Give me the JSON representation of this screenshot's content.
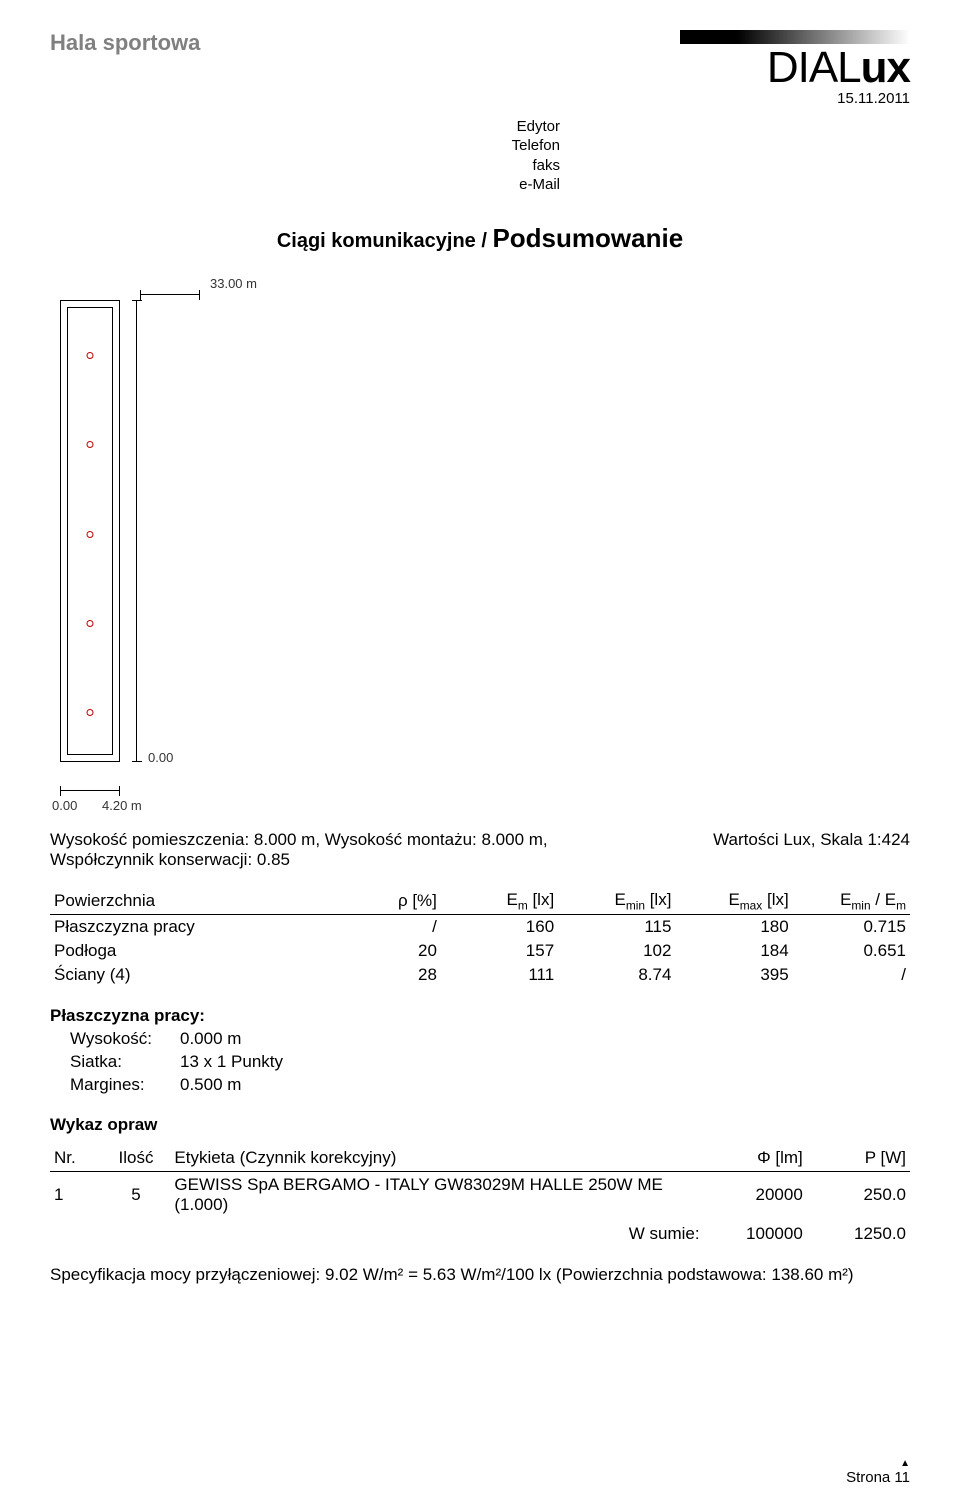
{
  "header": {
    "project_title": "Hala sportowa",
    "logo_light": "DIAL",
    "logo_bold": "ux",
    "date": "15.11.2011",
    "meta_labels": [
      "Edytor",
      "Telefon",
      "faks",
      "e-Mail"
    ]
  },
  "section_title": {
    "part1": "Ciągi komunikacyjne / ",
    "part2": "Podsumowanie"
  },
  "diagram": {
    "top_label": "33.00 m",
    "origin_label": "0.00",
    "bottom_left_label": "0.00",
    "bottom_right_label": "4.20 m",
    "luminaire_positions_pct": [
      10,
      30,
      50,
      70,
      90
    ]
  },
  "info": {
    "height_label": "Wysokość pomieszczenia: ",
    "height_value": "8.000 m, ",
    "mount_label": "Wysokość montażu: ",
    "mount_value": "8.000 m,",
    "maint_label": "Współczynnik konserwacji: ",
    "maint_value": "0.85",
    "scale_label": "Wartości Lux, Skala 1:424"
  },
  "table": {
    "headers": {
      "surface": "Powierzchnia",
      "rho": "ρ [%]",
      "em": "Eₘ [lx]",
      "emin": "E_min [lx]",
      "emax": "E_max [lx]",
      "ratio": "E_min / Eₘ"
    },
    "rows": [
      {
        "name": "Płaszczyzna pracy",
        "rho": "/",
        "em": "160",
        "emin": "115",
        "emax": "180",
        "ratio": "0.715"
      },
      {
        "name": "Podłoga",
        "rho": "20",
        "em": "157",
        "emin": "102",
        "emax": "184",
        "ratio": "0.651"
      },
      {
        "name": "Ściany (4)",
        "rho": "28",
        "em": "111",
        "emin": "8.74",
        "emax": "395",
        "ratio": "/"
      }
    ]
  },
  "workplane": {
    "header": "Płaszczyzna pracy:",
    "rows": [
      {
        "label": "Wysokość:",
        "value": "0.000 m"
      },
      {
        "label": "Siatka:",
        "value": "13 x 1 Punkty"
      },
      {
        "label": "Margines:",
        "value": "0.500 m"
      }
    ]
  },
  "lumlist": {
    "header": "Wykaz opraw",
    "columns": {
      "nr": "Nr.",
      "qty": "Ilość",
      "desc": "Etykieta (Czynnik korekcyjny)",
      "flux": "Φ [lm]",
      "power": "P [W]"
    },
    "rows": [
      {
        "nr": "1",
        "qty": "5",
        "desc": "GEWISS SpA BERGAMO - ITALY GW83029M HALLE 250W ME (1.000)",
        "flux": "20000",
        "power": "250.0"
      }
    ],
    "sum_label": "W sumie:",
    "sum_flux": "100000",
    "sum_power": "1250.0"
  },
  "spec": {
    "text": "Specyfikacja mocy przyłączeniowej: 9.02 W/m² = 5.63 W/m²/100 lx (Powierzchnia podstawowa: 138.60 m²)"
  },
  "footer": {
    "page": "Strona 11"
  }
}
